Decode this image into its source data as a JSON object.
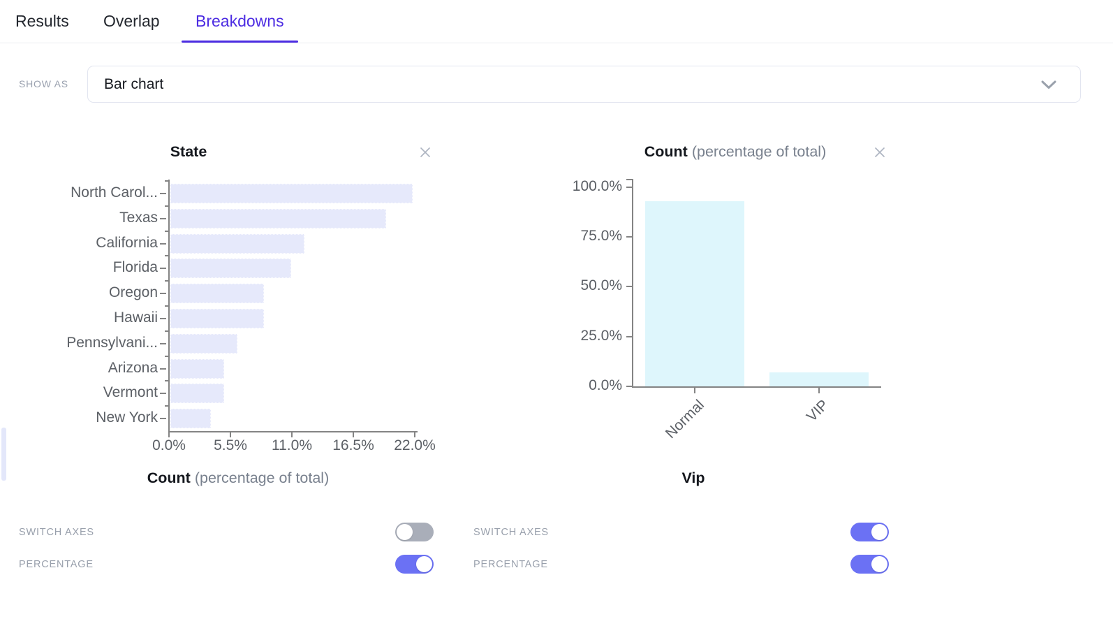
{
  "tabs": [
    {
      "label": "Results",
      "active": false
    },
    {
      "label": "Overlap",
      "active": false
    },
    {
      "label": "Breakdowns",
      "active": true
    }
  ],
  "show_as": {
    "label": "SHOW AS",
    "value": "Bar chart"
  },
  "chart_data": [
    {
      "type": "bar",
      "orientation": "horizontal",
      "title": "State",
      "categories": [
        "North Carol...",
        "Texas",
        "California",
        "Florida",
        "Oregon",
        "Hawaii",
        "Pennsylvani...",
        "Arizona",
        "Vermont",
        "New York"
      ],
      "values": [
        21.7,
        19.3,
        12.0,
        10.8,
        8.4,
        8.4,
        6.0,
        4.8,
        4.8,
        3.6
      ],
      "unit": "%",
      "xlim": [
        0,
        22
      ],
      "x_ticks": [
        {
          "label": "0.0%",
          "value": 0
        },
        {
          "label": "5.5%",
          "value": 5.5
        },
        {
          "label": "11.0%",
          "value": 11
        },
        {
          "label": "16.5%",
          "value": 16.5
        },
        {
          "label": "22.0%",
          "value": 22
        }
      ],
      "xlabel_primary": "Count",
      "xlabel_secondary": "(percentage of total)",
      "grid": false,
      "legend": null
    },
    {
      "type": "bar",
      "orientation": "vertical",
      "title_primary": "Count",
      "title_secondary": "(percentage of total)",
      "categories": [
        "Normal",
        "VIP"
      ],
      "values": [
        93,
        7
      ],
      "unit": "%",
      "ylim": [
        0,
        100
      ],
      "y_ticks": [
        {
          "label": "100.0%",
          "value": 100
        },
        {
          "label": "75.0%",
          "value": 75
        },
        {
          "label": "50.0%",
          "value": 50
        },
        {
          "label": "25.0%",
          "value": 25
        },
        {
          "label": "0.0%",
          "value": 0
        }
      ],
      "xlabel": "Vip",
      "grid": false,
      "legend": null
    }
  ],
  "chart_controls": [
    {
      "toggles": [
        {
          "label": "SWITCH AXES",
          "on": false
        },
        {
          "label": "PERCENTAGE",
          "on": true
        }
      ]
    },
    {
      "toggles": [
        {
          "label": "SWITCH AXES",
          "on": true
        },
        {
          "label": "PERCENTAGE",
          "on": true
        }
      ]
    }
  ],
  "colors": {
    "accent": "#4C2CE2",
    "toggle_on": "#6B71F4",
    "toggle_off": "#A9AEB9",
    "left_bar": "#E6E9FB",
    "right_bar": "#DEF6FC",
    "axis": "#848484"
  }
}
